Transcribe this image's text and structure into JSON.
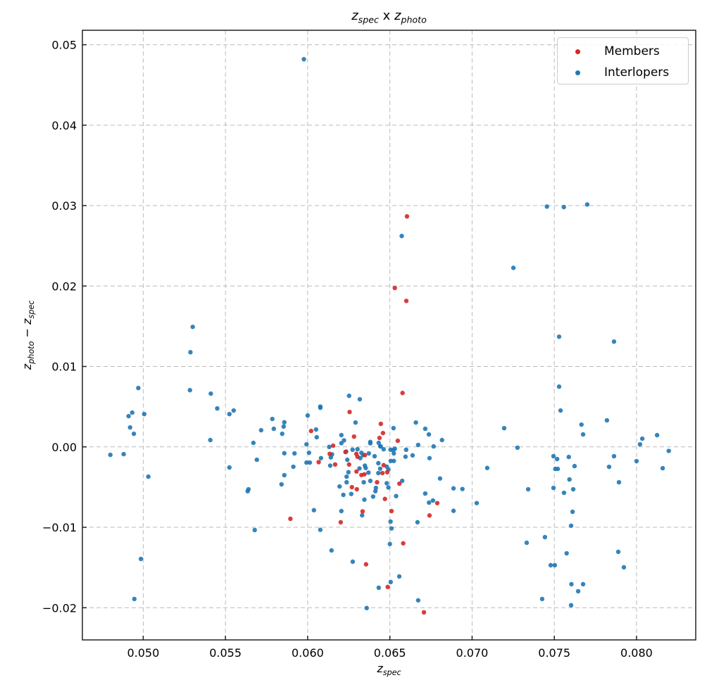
{
  "chart_data": {
    "type": "scatter",
    "title": {
      "a": "z",
      "a_sub": "spec",
      "mid": " x ",
      "b": "z",
      "b_sub": "photo"
    },
    "xlabel": {
      "base": "z",
      "sub": "spec"
    },
    "ylabel": {
      "a": "z",
      "a_sub": "photo",
      "mid": " − ",
      "b": "z",
      "b_sub": "spec"
    },
    "xlim": [
      0.0463,
      0.0836
    ],
    "ylim": [
      -0.024,
      0.0518
    ],
    "xticks": [
      0.05,
      0.055,
      0.06,
      0.065,
      0.07,
      0.075,
      0.08
    ],
    "xtick_labels": [
      "0.050",
      "0.055",
      "0.060",
      "0.065",
      "0.070",
      "0.075",
      "0.080"
    ],
    "yticks": [
      -0.02,
      -0.01,
      0.0,
      0.01,
      0.02,
      0.03,
      0.04,
      0.05
    ],
    "ytick_labels": [
      "−0.02",
      "−0.01",
      "0.00",
      "0.01",
      "0.02",
      "0.03",
      "0.04",
      "0.05"
    ],
    "grid": true,
    "legend_position": "top-right",
    "series": [
      {
        "name": "Members",
        "color": "#d62728",
        "points": [
          [
            0.06604,
            0.02866
          ],
          [
            0.0653,
            0.01976
          ],
          [
            0.066,
            0.01815
          ],
          [
            0.06577,
            0.0067
          ],
          [
            0.06255,
            0.00434
          ],
          [
            0.06445,
            0.00286
          ],
          [
            0.06458,
            0.00172
          ],
          [
            0.06437,
            0.00111
          ],
          [
            0.06548,
            0.00076
          ],
          [
            0.06282,
            0.00128
          ],
          [
            0.06021,
            0.00198
          ],
          [
            0.06155,
            0.00015
          ],
          [
            0.06067,
            -0.0019
          ],
          [
            0.06134,
            -0.00087
          ],
          [
            0.06167,
            -0.00219
          ],
          [
            0.0623,
            -0.00064
          ],
          [
            0.06252,
            -0.00219
          ],
          [
            0.06269,
            -0.00501
          ],
          [
            0.06299,
            -0.00527
          ],
          [
            0.06296,
            -0.00087
          ],
          [
            0.06303,
            -0.00122
          ],
          [
            0.06348,
            -0.00102
          ],
          [
            0.06297,
            -0.00306
          ],
          [
            0.06327,
            -0.0035
          ],
          [
            0.06345,
            -0.00341
          ],
          [
            0.06462,
            -0.00227
          ],
          [
            0.06455,
            -0.00326
          ],
          [
            0.06484,
            -0.00315
          ],
          [
            0.06422,
            -0.0044
          ],
          [
            0.0647,
            -0.00647
          ],
          [
            0.06558,
            -0.00457
          ],
          [
            0.06334,
            -0.00802
          ],
          [
            0.0651,
            -0.00798
          ],
          [
            0.06788,
            -0.00699
          ],
          [
            0.06741,
            -0.00853
          ],
          [
            0.06201,
            -0.00937
          ],
          [
            0.06581,
            -0.01199
          ],
          [
            0.06355,
            -0.0146
          ],
          [
            0.06487,
            -0.01742
          ],
          [
            0.06707,
            -0.02057
          ],
          [
            0.05895,
            -0.00894
          ]
        ]
      },
      {
        "name": "Interlopers",
        "color": "#1f77b4",
        "points": [
          [
            0.05977,
            0.0482
          ],
          [
            0.06572,
            0.02622
          ],
          [
            0.07455,
            0.02988
          ],
          [
            0.07558,
            0.02982
          ],
          [
            0.077,
            0.03014
          ],
          [
            0.05301,
            0.01492
          ],
          [
            0.05287,
            0.01177
          ],
          [
            0.0497,
            0.00732
          ],
          [
            0.05284,
            0.00705
          ],
          [
            0.05411,
            0.00662
          ],
          [
            0.0545,
            0.00478
          ],
          [
            0.05524,
            0.00408
          ],
          [
            0.0555,
            0.00452
          ],
          [
            0.04911,
            0.00382
          ],
          [
            0.04933,
            0.00426
          ],
          [
            0.05006,
            0.00408
          ],
          [
            0.0492,
            0.00242
          ],
          [
            0.04943,
            0.00163
          ],
          [
            0.05408,
            0.00085
          ],
          [
            0.0567,
            0.0005
          ],
          [
            0.05717,
            0.00207
          ],
          [
            0.05785,
            0.00347
          ],
          [
            0.05794,
            0.00225
          ],
          [
            0.05845,
            0.00163
          ],
          [
            0.05854,
            0.00253
          ],
          [
            0.05858,
            0.00306
          ],
          [
            0.07251,
            0.02226
          ],
          [
            0.07529,
            0.0137
          ],
          [
            0.07863,
            0.01309
          ],
          [
            0.07529,
            0.00749
          ],
          [
            0.07538,
            0.00452
          ],
          [
            0.07665,
            0.00277
          ],
          [
            0.07675,
            0.00155
          ],
          [
            0.0782,
            0.0033
          ],
          [
            0.07195,
            0.00233
          ],
          [
            0.07276,
            -0.0001
          ],
          [
            0.08035,
            0.00102
          ],
          [
            0.08021,
            0.00032
          ],
          [
            0.08125,
            0.00146
          ],
          [
            0.08196,
            -0.0005
          ],
          [
            0.06252,
            0.00635
          ],
          [
            0.06317,
            0.00592
          ],
          [
            0.06077,
            0.00501
          ],
          [
            0.06077,
            0.00486
          ],
          [
            0.06,
            0.0039
          ],
          [
            0.06291,
            0.00303
          ],
          [
            0.06051,
            0.00216
          ],
          [
            0.06055,
            0.0012
          ],
          [
            0.06205,
            0.00146
          ],
          [
            0.06221,
            0.00081
          ],
          [
            0.06205,
            0.00046
          ],
          [
            0.06522,
            0.00233
          ],
          [
            0.06658,
            0.00303
          ],
          [
            0.06715,
            0.00225
          ],
          [
            0.06737,
            0.00155
          ],
          [
            0.06817,
            0.00085
          ],
          [
            0.06672,
            0.00024
          ],
          [
            0.06766,
            6e-05
          ],
          [
            0.05993,
            0.00032
          ],
          [
            0.06131,
            0.0
          ],
          [
            0.06381,
            0.00062
          ],
          [
            0.06381,
            0.00044
          ],
          [
            0.06432,
            0.0005
          ],
          [
            0.06441,
            9e-05
          ],
          [
            0.0592,
            -0.00081
          ],
          [
            0.05913,
            -0.00247
          ],
          [
            0.06008,
            -0.00073
          ],
          [
            0.05993,
            -0.00195
          ],
          [
            0.06013,
            -0.00195
          ],
          [
            0.06081,
            -0.0014
          ],
          [
            0.06137,
            -0.00233
          ],
          [
            0.06141,
            -0.00131
          ],
          [
            0.06148,
            -0.00093
          ],
          [
            0.06234,
            -0.00058
          ],
          [
            0.06241,
            -0.0016
          ],
          [
            0.06248,
            -0.00315
          ],
          [
            0.06237,
            -0.0037
          ],
          [
            0.06237,
            -0.0044
          ],
          [
            0.06194,
            -0.00492
          ],
          [
            0.06217,
            -0.00597
          ],
          [
            0.06265,
            -0.00585
          ],
          [
            0.06273,
            -0.00035
          ],
          [
            0.06303,
            -0.00029
          ],
          [
            0.06327,
            -0.00073
          ],
          [
            0.0632,
            -0.0014
          ],
          [
            0.06337,
            -0.00102
          ],
          [
            0.06372,
            -0.00081
          ],
          [
            0.06348,
            -0.00233
          ],
          [
            0.06353,
            -0.00262
          ],
          [
            0.06315,
            -0.00268
          ],
          [
            0.0637,
            -0.0032
          ],
          [
            0.06341,
            -0.0044
          ],
          [
            0.06381,
            -0.00423
          ],
          [
            0.06407,
            -0.00116
          ],
          [
            0.06444,
            6e-05
          ],
          [
            0.06462,
            -0.00029
          ],
          [
            0.0643,
            -0.00203
          ],
          [
            0.06441,
            -0.00271
          ],
          [
            0.0643,
            -0.00326
          ],
          [
            0.06481,
            -0.00245
          ],
          [
            0.06491,
            -0.00282
          ],
          [
            0.06481,
            -0.00452
          ],
          [
            0.06491,
            -0.00505
          ],
          [
            0.06415,
            -0.0051
          ],
          [
            0.06412,
            -0.00551
          ],
          [
            0.06398,
            -0.00618
          ],
          [
            0.06345,
            -0.00656
          ],
          [
            0.06504,
            -0.00035
          ],
          [
            0.0652,
            -0.00038
          ],
          [
            0.0653,
            -0.00023
          ],
          [
            0.06524,
            -0.00081
          ],
          [
            0.06505,
            -0.00175
          ],
          [
            0.06524,
            -0.00175
          ],
          [
            0.06538,
            -0.00612
          ],
          [
            0.06038,
            -0.00787
          ],
          [
            0.06205,
            -0.00798
          ],
          [
            0.06331,
            -0.00851
          ],
          [
            0.06599,
            -0.00035
          ],
          [
            0.06595,
            -0.00122
          ],
          [
            0.06638,
            -0.00105
          ],
          [
            0.06741,
            -0.0014
          ],
          [
            0.07092,
            -0.00262
          ],
          [
            0.06575,
            -0.00422
          ],
          [
            0.06805,
            -0.00393
          ],
          [
            0.06887,
            -0.00516
          ],
          [
            0.06941,
            -0.00524
          ],
          [
            0.06715,
            -0.0058
          ],
          [
            0.06738,
            -0.00693
          ],
          [
            0.06762,
            -0.00667
          ],
          [
            0.07028,
            -0.00699
          ],
          [
            0.06887,
            -0.00795
          ],
          [
            0.06504,
            -0.00929
          ],
          [
            0.0651,
            -0.01014
          ],
          [
            0.06668,
            -0.00937
          ],
          [
            0.06077,
            -0.01031
          ],
          [
            0.065,
            -0.01207
          ],
          [
            0.06145,
            -0.01287
          ],
          [
            0.06274,
            -0.01427
          ],
          [
            0.06557,
            -0.01611
          ],
          [
            0.06505,
            -0.01681
          ],
          [
            0.06432,
            -0.01751
          ],
          [
            0.06672,
            -0.01908
          ],
          [
            0.06359,
            -0.02004
          ],
          [
            0.048,
            -0.00099
          ],
          [
            0.04881,
            -0.0009
          ],
          [
            0.05031,
            -0.0037
          ],
          [
            0.04986,
            -0.01393
          ],
          [
            0.04946,
            -0.01891
          ],
          [
            0.05524,
            -0.00256
          ],
          [
            0.05691,
            -0.0016
          ],
          [
            0.05858,
            -0.00079
          ],
          [
            0.05858,
            -0.00352
          ],
          [
            0.05841,
            -0.00466
          ],
          [
            0.05635,
            -0.00551
          ],
          [
            0.0564,
            -0.00527
          ],
          [
            0.05678,
            -0.01034
          ],
          [
            0.07495,
            -0.00116
          ],
          [
            0.07517,
            -0.00151
          ],
          [
            0.07588,
            -0.00125
          ],
          [
            0.07863,
            -0.00116
          ],
          [
            0.08,
            -0.00177
          ],
          [
            0.07506,
            -0.00274
          ],
          [
            0.07521,
            -0.00274
          ],
          [
            0.07623,
            -0.00239
          ],
          [
            0.07833,
            -0.00248
          ],
          [
            0.08159,
            -0.00265
          ],
          [
            0.07592,
            -0.00405
          ],
          [
            0.07893,
            -0.0044
          ],
          [
            0.07341,
            -0.00527
          ],
          [
            0.07495,
            -0.0051
          ],
          [
            0.07615,
            -0.00527
          ],
          [
            0.07559,
            -0.00571
          ],
          [
            0.07611,
            -0.00807
          ],
          [
            0.07602,
            -0.0098
          ],
          [
            0.07443,
            -0.01122
          ],
          [
            0.07332,
            -0.01192
          ],
          [
            0.07575,
            -0.01323
          ],
          [
            0.07889,
            -0.01305
          ],
          [
            0.07923,
            -0.01497
          ],
          [
            0.07478,
            -0.01471
          ],
          [
            0.07503,
            -0.01471
          ],
          [
            0.07604,
            -0.01707
          ],
          [
            0.07675,
            -0.01707
          ],
          [
            0.07645,
            -0.01795
          ],
          [
            0.07426,
            -0.01891
          ],
          [
            0.07602,
            -0.01969
          ]
        ]
      }
    ]
  }
}
